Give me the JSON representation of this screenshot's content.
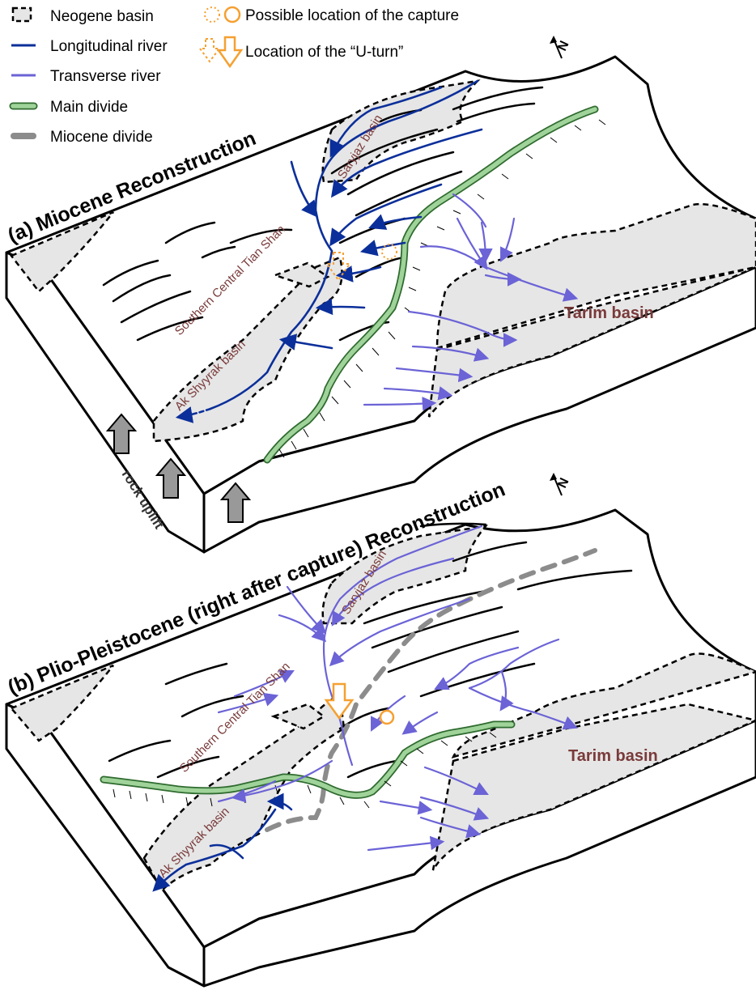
{
  "legend": {
    "neogene_basin": "Neogene basin",
    "longitudinal_river": "Longitudinal river",
    "transverse_river": "Transverse river",
    "main_divide": "Main divide",
    "miocene_divide": "Miocene divide",
    "capture_location": "Possible location of the capture",
    "u_turn_location": "Location of the “U-turn”"
  },
  "panel_a": {
    "title": "(a) Miocene Reconstruction",
    "north": "N",
    "labels": {
      "sarjiaz": "Saryjaz basin",
      "tianshan": "Southern Central Tian Shan",
      "akshyyrak": "Ak Shyyrak basin",
      "tarim": "Tarim basin"
    }
  },
  "panel_b": {
    "title": "(b) Plio-Pleistocene (right after capture) Reconstruction",
    "north": "N",
    "labels": {
      "sarjiaz": "Saryjaz basin",
      "tianshan": "Southern Central Tian Shan",
      "akshyyrak": "Ak Shyyrak basin",
      "tarim": "Tarim basin"
    }
  },
  "uplift_label": "rock uplift",
  "colors": {
    "longitudinal": "#0b2f9a",
    "transverse": "#6b63d6",
    "main_divide": "#9fd39a",
    "miocene_divide": "#8c8c8c",
    "capture": "#f5a030",
    "basin_fill": "#e6e6e6",
    "basin_text": "#7a3a3a"
  }
}
